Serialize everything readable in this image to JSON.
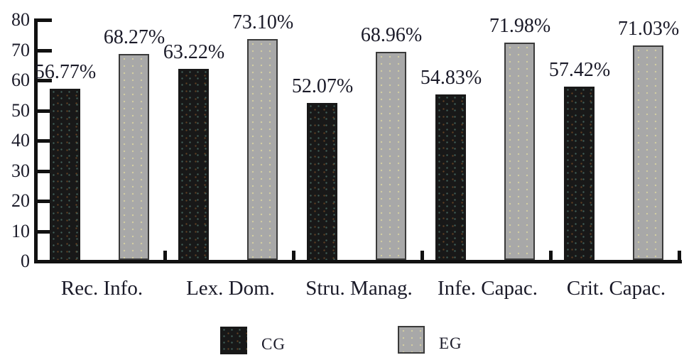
{
  "chart_data": {
    "type": "bar",
    "categories": [
      "Rec. Info.",
      "Lex. Dom.",
      "Stru. Manag.",
      "Infe. Capac.",
      "Crit. Capac."
    ],
    "series": [
      {
        "name": "CG",
        "color": "#181818",
        "values": [
          56.77,
          63.22,
          52.07,
          54.83,
          57.42
        ],
        "labels": [
          "56.77%",
          "63.22%",
          "52.07%",
          "54.83%",
          "57.42%"
        ]
      },
      {
        "name": "EG",
        "color": "#a8a8a8",
        "values": [
          68.27,
          73.1,
          68.96,
          71.98,
          71.03
        ],
        "labels": [
          "68.27%",
          "73.10%",
          "68.96%",
          "71.98%",
          "71.03%"
        ]
      }
    ],
    "title": "",
    "xlabel": "",
    "ylabel": "",
    "ylim": [
      0,
      80
    ],
    "yticks": [
      0,
      10,
      20,
      30,
      40,
      50,
      60,
      70,
      80
    ],
    "grid": false,
    "legend_position": "bottom",
    "value_suffix": "%"
  }
}
